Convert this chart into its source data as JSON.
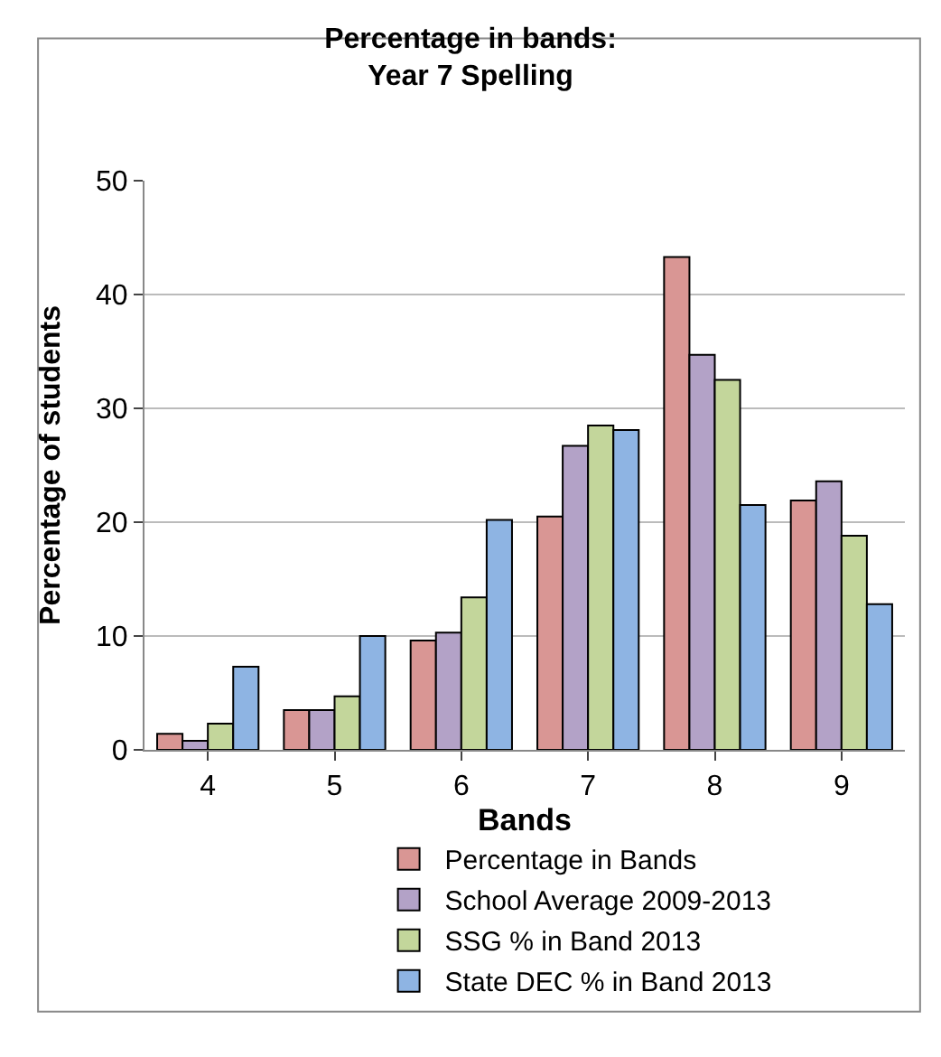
{
  "chart_data": {
    "type": "bar",
    "title": "Percentage in bands:\nYear 7 Spelling",
    "xlabel": "Bands",
    "ylabel": "Percentage of students",
    "categories": [
      "4",
      "5",
      "6",
      "7",
      "8",
      "9"
    ],
    "series": [
      {
        "name": "Percentage in Bands",
        "color": "#d99694",
        "values": [
          1.4,
          3.5,
          9.6,
          20.5,
          43.3,
          21.9
        ]
      },
      {
        "name": "School Average 2009-2013",
        "color": "#b3a2c7",
        "values": [
          0.8,
          3.5,
          10.3,
          26.7,
          34.7,
          23.6
        ]
      },
      {
        "name": "SSG % in Band 2013",
        "color": "#c3d69b",
        "values": [
          2.3,
          4.7,
          13.4,
          28.5,
          32.5,
          18.8
        ]
      },
      {
        "name": "State DEC % in Band 2013",
        "color": "#8eb4e3",
        "values": [
          7.3,
          10.0,
          20.2,
          28.1,
          21.5,
          12.8
        ]
      }
    ],
    "ylim": [
      0,
      50
    ],
    "yticks": [
      0,
      10,
      20,
      30,
      40,
      50
    ],
    "grid": "y",
    "legend": "bottom"
  }
}
